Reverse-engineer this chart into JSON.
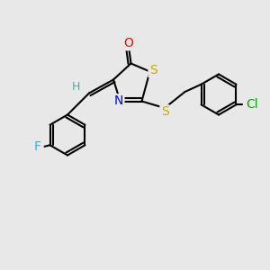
{
  "bg_color": "#e8e8e8",
  "bond_color": "#000000",
  "bond_width": 1.5,
  "atom_colors": {
    "O": "#ff0000",
    "S": "#ccaa00",
    "N": "#0000ff",
    "F": "#00cccc",
    "Cl": "#00aa00",
    "H": "#00cccc",
    "C": "#000000"
  },
  "font_size": 9,
  "fig_size": [
    3.0,
    3.0
  ],
  "dpi": 100
}
